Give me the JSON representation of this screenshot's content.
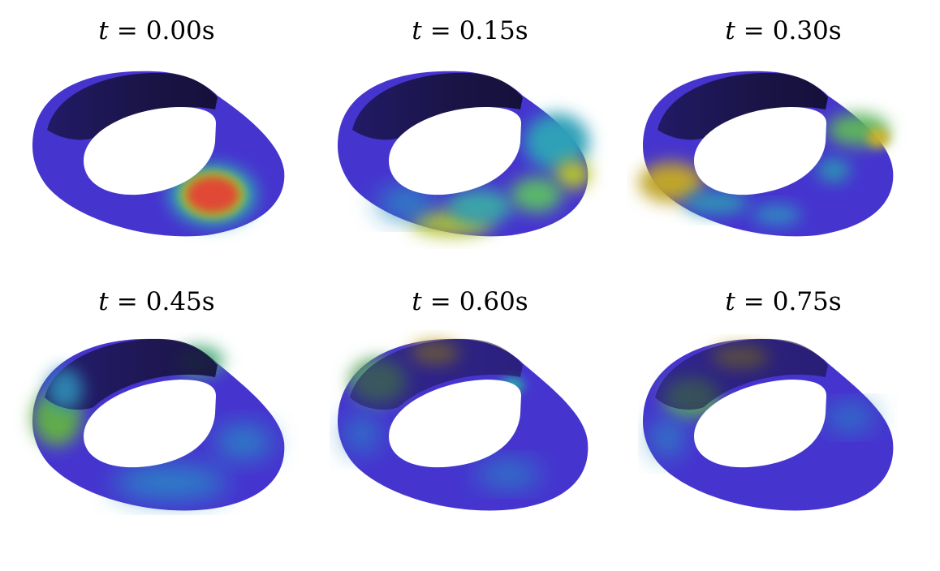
{
  "panels": [
    {
      "var": "t",
      "eq": "=",
      "value": "0.00s"
    },
    {
      "var": "t",
      "eq": "=",
      "value": "0.15s"
    },
    {
      "var": "t",
      "eq": "=",
      "value": "0.30s"
    },
    {
      "var": "t",
      "eq": "=",
      "value": "0.45s"
    },
    {
      "var": "t",
      "eq": "=",
      "value": "0.60s"
    },
    {
      "var": "t",
      "eq": "=",
      "value": "0.75s"
    }
  ],
  "colormap": [
    "#1a1446",
    "#3f2fc4",
    "#4a3ad6",
    "#2f79c9",
    "#27b3a8",
    "#7cc03a",
    "#d8c614",
    "#e64833"
  ],
  "surface": "mobius-strip-field-snapshots"
}
